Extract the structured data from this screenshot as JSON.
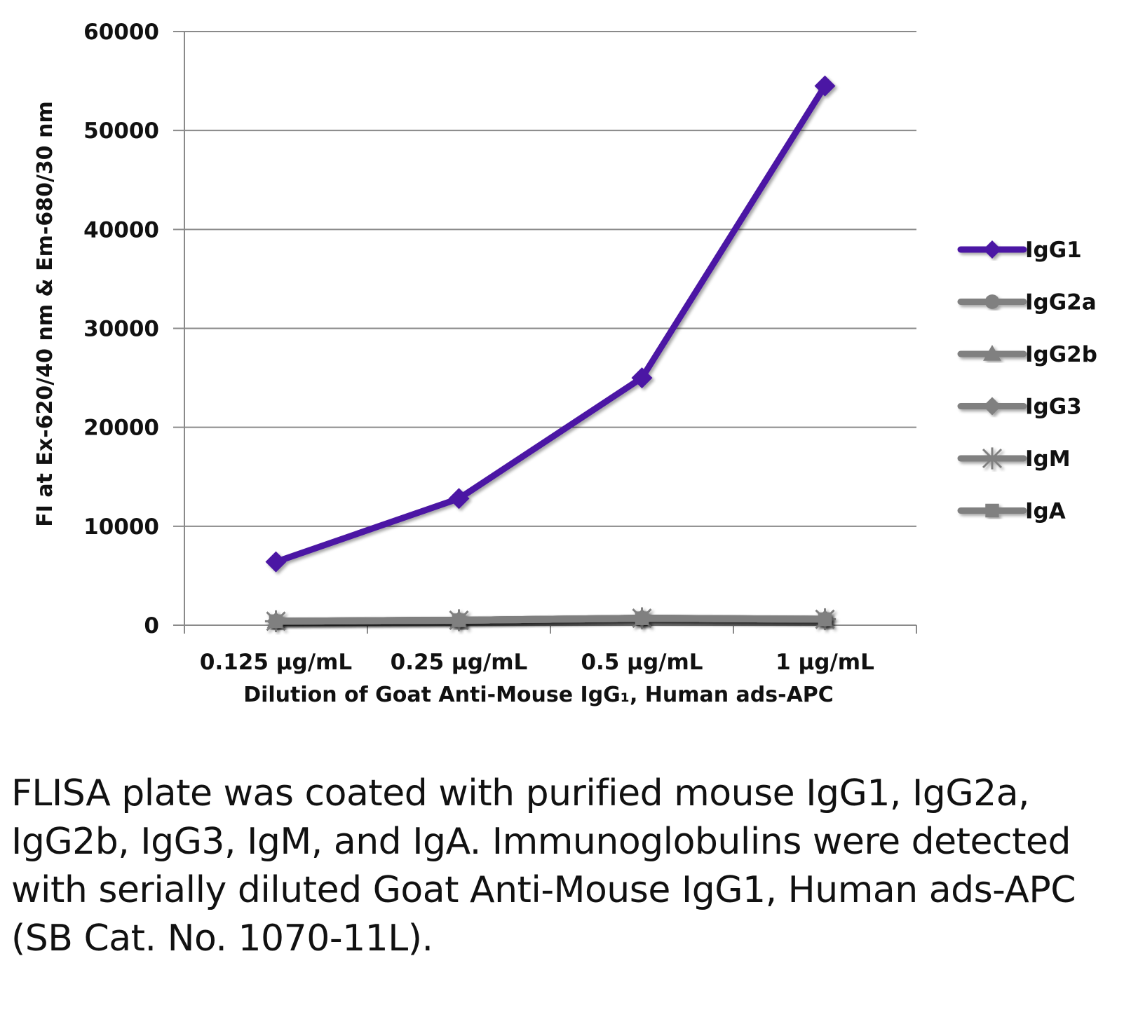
{
  "chart_data": {
    "type": "line",
    "title": "",
    "categories": [
      "0.125 µg/mL",
      "0.25 µg/mL",
      "0.5 µg/mL",
      "1 µg/mL"
    ],
    "xlabel": "Dilution of Goat Anti-Mouse IgG₁, Human ads-APC",
    "ylabel": "FI at Ex-620/40 nm & Em-680/30 nm",
    "ylim": [
      0,
      60000
    ],
    "yticks": [
      0,
      10000,
      20000,
      30000,
      40000,
      50000,
      60000
    ],
    "ytick_labels": [
      "0",
      "10000",
      "20000",
      "30000",
      "40000",
      "50000",
      "60000"
    ],
    "grid": true,
    "legend_position": "right",
    "series": [
      {
        "name": "IgG1",
        "marker": "diamond",
        "color": "#4b14a4",
        "values": [
          6400,
          12800,
          25000,
          54500
        ]
      },
      {
        "name": "IgG2a",
        "marker": "circle",
        "color": "#808080",
        "values": [
          400,
          500,
          700,
          600
        ]
      },
      {
        "name": "IgG2b",
        "marker": "triangle",
        "color": "#808080",
        "values": [
          400,
          500,
          700,
          600
        ]
      },
      {
        "name": "IgG3",
        "marker": "diamond",
        "color": "#808080",
        "values": [
          400,
          500,
          700,
          600
        ]
      },
      {
        "name": "IgM",
        "marker": "star",
        "color": "#808080",
        "values": [
          400,
          500,
          700,
          600
        ]
      },
      {
        "name": "IgA",
        "marker": "square",
        "color": "#808080",
        "values": [
          400,
          500,
          700,
          600
        ]
      }
    ]
  },
  "caption": "FLISA plate was coated with purified mouse IgG1, IgG2a, IgG2b, IgG3, IgM, and IgA. Immunoglobulins were detected with serially diluted Goat Anti-Mouse IgG1, Human ads-APC (SB Cat. No. 1070-11L).",
  "colors": {
    "primary_series": "#4b14a4",
    "other_series": "#808080",
    "gridline": "#8a8a8a"
  }
}
